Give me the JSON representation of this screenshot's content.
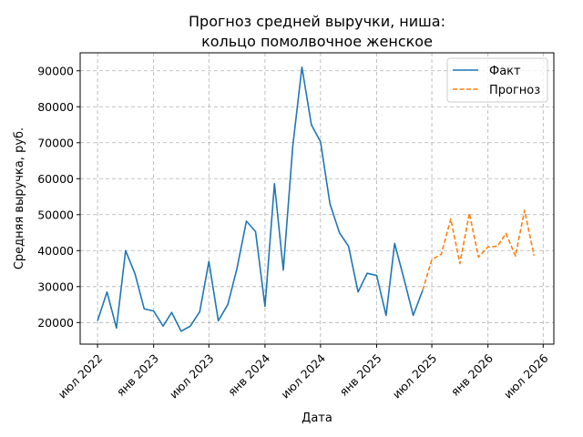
{
  "chart_data": {
    "type": "line",
    "title_lines": [
      "Прогноз средней выручки, ниша:",
      "кольцо помолвочное женское"
    ],
    "xlabel": "Дата",
    "ylabel": "Средняя выручка, руб.",
    "xlim": [
      "2022-05-05",
      "2026-08-05"
    ],
    "ylim": [
      14000,
      95000
    ],
    "grid": true,
    "legend_position": "top-right",
    "x_ticks": [
      {
        "date": "2022-07-01",
        "label": "июл 2022"
      },
      {
        "date": "2023-01-01",
        "label": "янв 2023"
      },
      {
        "date": "2023-07-01",
        "label": "июл 2023"
      },
      {
        "date": "2024-01-01",
        "label": "янв 2024"
      },
      {
        "date": "2024-07-01",
        "label": "июл 2024"
      },
      {
        "date": "2025-01-01",
        "label": "янв 2025"
      },
      {
        "date": "2025-07-01",
        "label": "июл 2025"
      },
      {
        "date": "2026-01-01",
        "label": "янв 2026"
      },
      {
        "date": "2026-07-01",
        "label": "июл 2026"
      }
    ],
    "y_ticks": [
      20000,
      30000,
      40000,
      50000,
      60000,
      70000,
      80000,
      90000
    ],
    "series": [
      {
        "name": "Факт",
        "color": "#1f77b4",
        "style": "solid",
        "points": [
          [
            "2022-07-01",
            20500
          ],
          [
            "2022-08-01",
            28500
          ],
          [
            "2022-09-01",
            18500
          ],
          [
            "2022-10-01",
            40000
          ],
          [
            "2022-11-01",
            33500
          ],
          [
            "2022-12-01",
            23800
          ],
          [
            "2023-01-01",
            23200
          ],
          [
            "2023-02-01",
            19000
          ],
          [
            "2023-03-01",
            22800
          ],
          [
            "2023-04-01",
            17600
          ],
          [
            "2023-05-01",
            19000
          ],
          [
            "2023-06-01",
            23000
          ],
          [
            "2023-07-01",
            37000
          ],
          [
            "2023-08-01",
            20500
          ],
          [
            "2023-09-01",
            25000
          ],
          [
            "2023-10-01",
            35000
          ],
          [
            "2023-11-01",
            48200
          ],
          [
            "2023-12-01",
            45300
          ],
          [
            "2024-01-01",
            24500
          ],
          [
            "2024-02-01",
            58600
          ],
          [
            "2024-03-01",
            34600
          ],
          [
            "2024-04-01",
            69000
          ],
          [
            "2024-05-01",
            91000
          ],
          [
            "2024-06-01",
            75000
          ],
          [
            "2024-07-01",
            70300
          ],
          [
            "2024-08-01",
            53000
          ],
          [
            "2024-09-01",
            45000
          ],
          [
            "2024-10-01",
            41200
          ],
          [
            "2024-11-01",
            28500
          ],
          [
            "2024-12-01",
            33700
          ],
          [
            "2025-01-01",
            33100
          ],
          [
            "2025-02-01",
            22000
          ],
          [
            "2025-03-01",
            42000
          ],
          [
            "2025-04-01",
            32000
          ],
          [
            "2025-05-01",
            22000
          ],
          [
            "2025-06-01",
            29000
          ]
        ]
      },
      {
        "name": "Прогноз",
        "color": "#ff7f0e",
        "style": "dashed",
        "points": [
          [
            "2025-06-01",
            29000
          ],
          [
            "2025-07-01",
            37500
          ],
          [
            "2025-08-01",
            39000
          ],
          [
            "2025-09-01",
            48800
          ],
          [
            "2025-10-01",
            36400
          ],
          [
            "2025-11-01",
            50400
          ],
          [
            "2025-12-01",
            38200
          ],
          [
            "2026-01-01",
            41000
          ],
          [
            "2026-02-01",
            41200
          ],
          [
            "2026-03-01",
            44800
          ],
          [
            "2026-04-01",
            38500
          ],
          [
            "2026-05-01",
            51200
          ],
          [
            "2026-06-01",
            38600
          ]
        ]
      }
    ]
  }
}
